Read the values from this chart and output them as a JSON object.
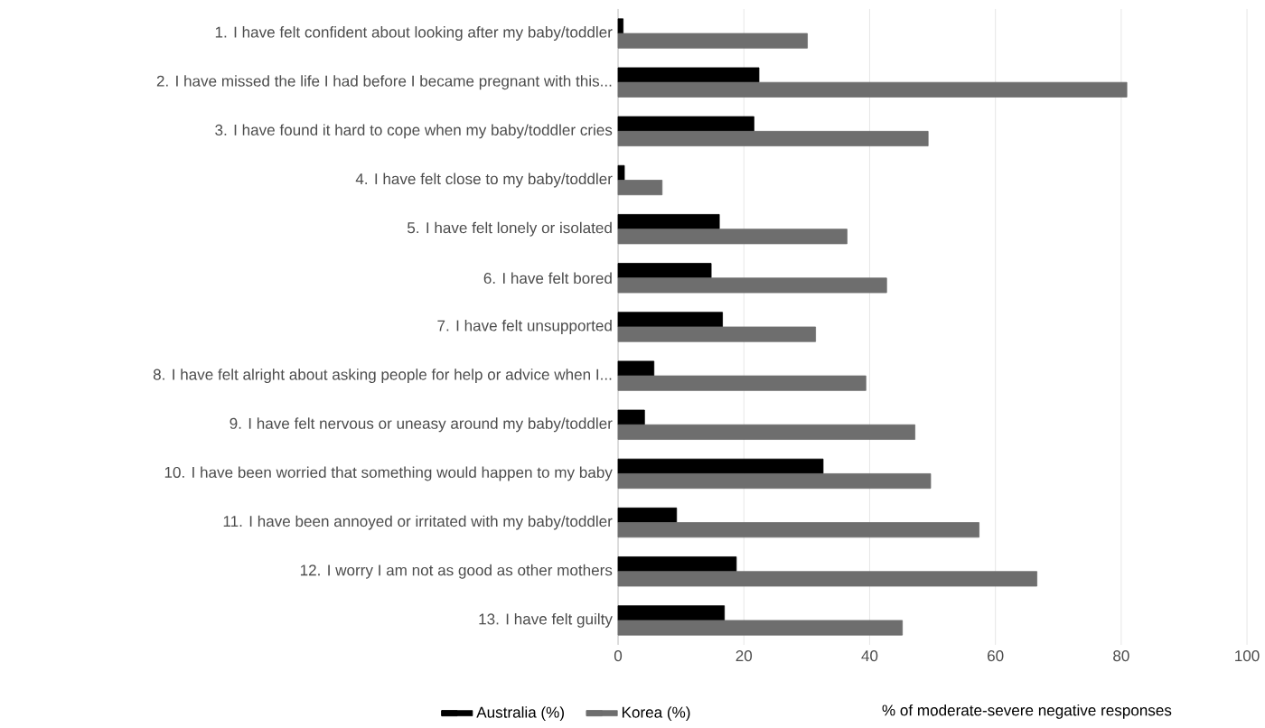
{
  "chart_data": {
    "type": "bar",
    "orientation": "horizontal",
    "xlabel": "% of moderate-severe negative responses",
    "categories": [
      "1. I have felt confident about looking after my baby/toddler",
      "2. I have missed the life I had before I became pregnant with this...",
      "3. I have found it hard to cope when my baby/toddler cries",
      "4. I have felt close to my baby/toddler",
      "5. I have felt lonely or isolated",
      "6. I have felt bored",
      "7. I have felt unsupported",
      "8. I have felt alright about asking people for help or advice when I...",
      "9. I have felt nervous or uneasy around my baby/toddler",
      "10. I have been worried that something would happen to my baby",
      "11. I have been annoyed or irritated with my baby/toddler",
      "12. I worry I am not as good as other mothers",
      "13. I have felt guilty"
    ],
    "series": [
      {
        "name": "Australia (%)",
        "color": "#000000",
        "values": [
          0.8,
          22.4,
          21.6,
          1.0,
          16.1,
          14.8,
          16.6,
          5.7,
          4.2,
          32.6,
          9.3,
          18.8,
          16.9
        ]
      },
      {
        "name": "Korea (%)",
        "color": "#6e6e6e",
        "values": [
          30.1,
          80.9,
          49.3,
          7.0,
          36.4,
          42.7,
          31.4,
          39.4,
          47.2,
          49.7,
          57.4,
          66.6,
          45.2
        ]
      }
    ],
    "xlim": [
      0,
      100
    ],
    "xticks": [
      0,
      20,
      40,
      60,
      80,
      100
    ],
    "grid": "x",
    "legend": "bottom"
  }
}
